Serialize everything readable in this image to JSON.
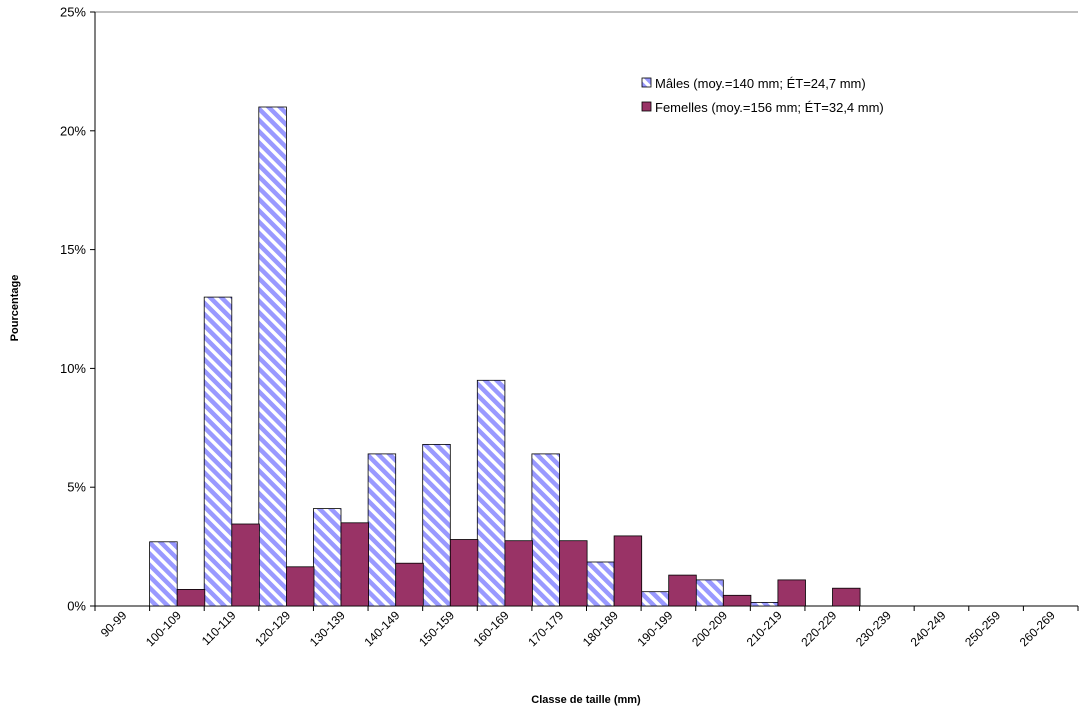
{
  "chart_data": {
    "type": "bar",
    "xlabel": "Classe de taille (mm)",
    "ylabel": "Pourcentage",
    "ylim": [
      0,
      25
    ],
    "y_ticks": [
      "0%",
      "5%",
      "10%",
      "15%",
      "20%",
      "25%"
    ],
    "grid": false,
    "legend_position": "top-right",
    "categories": [
      "90-99",
      "100-109",
      "110-119",
      "120-129",
      "130-139",
      "140-149",
      "150-159",
      "160-169",
      "170-179",
      "180-189",
      "190-199",
      "200-209",
      "210-219",
      "220-229",
      "230-239",
      "240-249",
      "250-259",
      "260-269"
    ],
    "series": [
      {
        "name": "Mâles (moy.=140 mm; ÉT=24,7 mm)",
        "pattern": "diagonal-stripes",
        "color": "#9999ff",
        "values": [
          0,
          2.7,
          13.0,
          21.0,
          4.1,
          6.4,
          6.8,
          9.5,
          6.4,
          1.85,
          0.6,
          1.1,
          0.15,
          0,
          0,
          0,
          0,
          0
        ]
      },
      {
        "name": "Femelles (moy.=156 mm; ÉT=32,4 mm)",
        "pattern": "solid",
        "color": "#993366",
        "values": [
          0,
          0.7,
          3.45,
          1.65,
          3.5,
          1.8,
          2.8,
          2.75,
          2.75,
          2.95,
          1.3,
          0.45,
          1.1,
          0.75,
          0,
          0,
          0,
          0
        ]
      }
    ]
  }
}
